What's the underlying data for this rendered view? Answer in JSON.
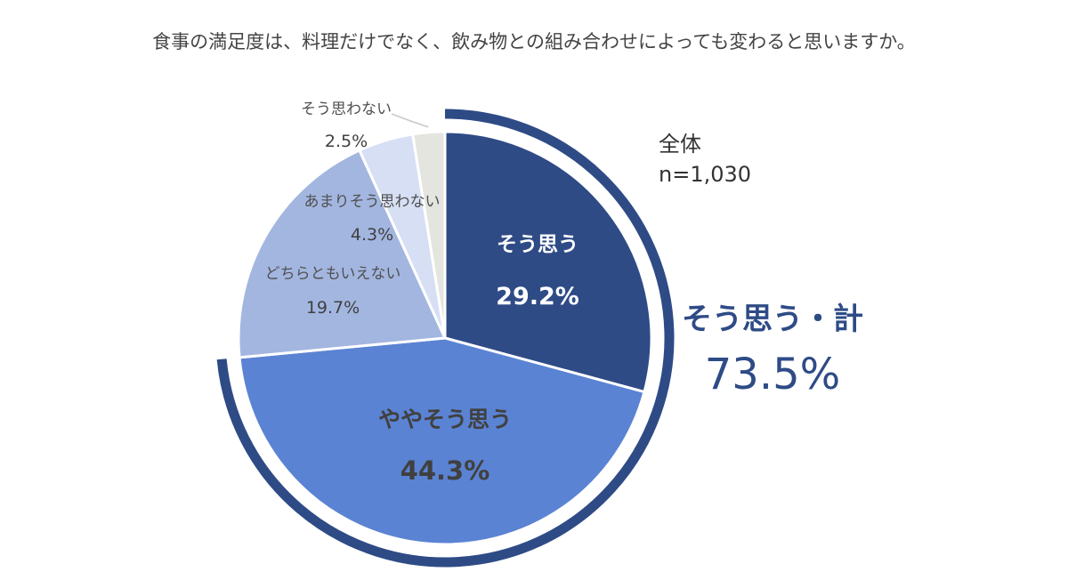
{
  "chart_data": {
    "type": "pie",
    "title": "食事の満足度は、料理だけでなく、飲み物との組み合わせによっても変わると思いますか。",
    "total_label": "全体",
    "n_label": "n=1,030",
    "slices": [
      {
        "name": "そう思う",
        "value": 29.2,
        "value_label": "29.2%",
        "color": "#2e4b86"
      },
      {
        "name": "ややそう思う",
        "value": 44.3,
        "value_label": "44.3%",
        "color": "#5b83d3"
      },
      {
        "name": "どちらともいえない",
        "value": 19.7,
        "value_label": "19.7%",
        "color": "#a3b6e0"
      },
      {
        "name": "あまりそう思わない",
        "value": 4.3,
        "value_label": "4.3%",
        "color": "#d6dff3"
      },
      {
        "name": "そう思わない",
        "value": 2.5,
        "value_label": "2.5%",
        "color": "#e4e5df"
      }
    ],
    "sum": {
      "label": "そう思う・計",
      "value": 73.5,
      "value_label": "73.5%",
      "color": "#2e4b86"
    }
  }
}
